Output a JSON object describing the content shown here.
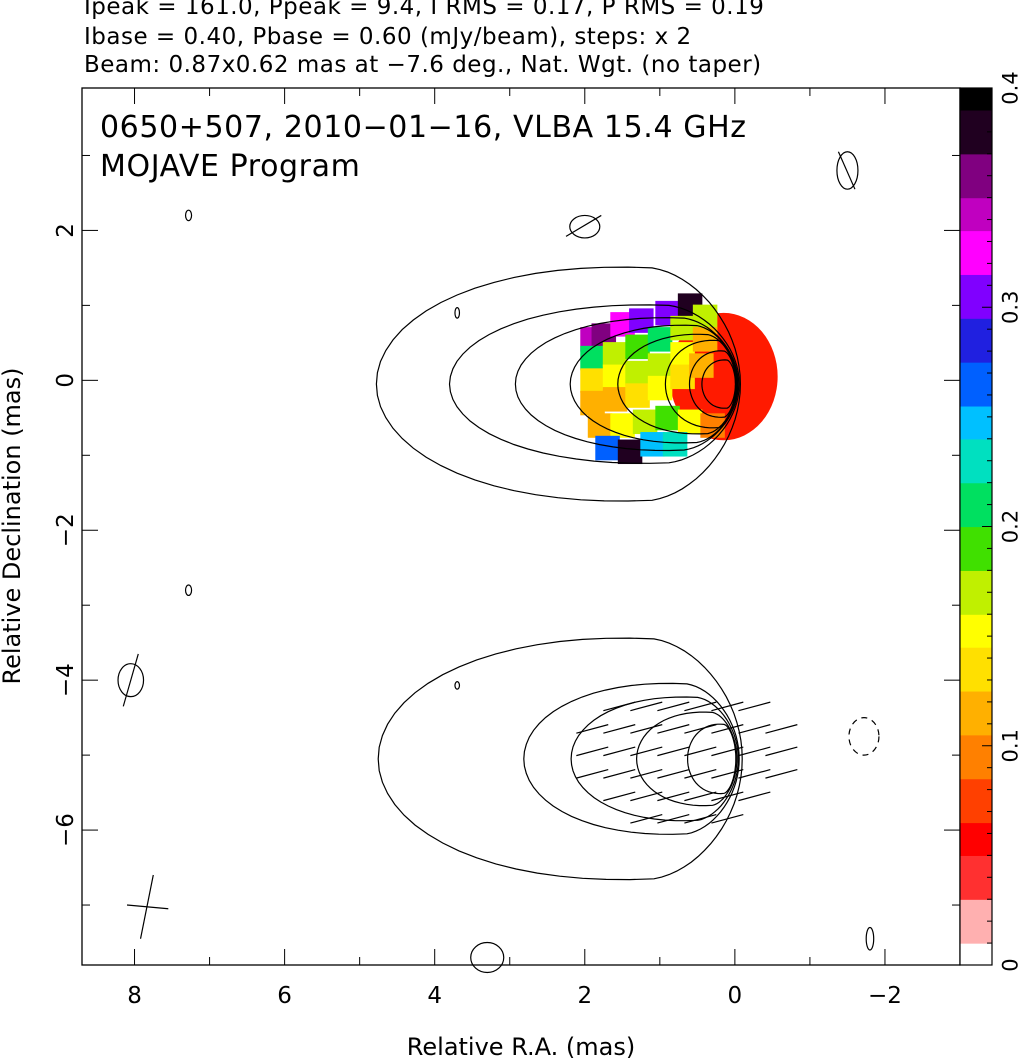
{
  "header": {
    "line1": "Ipeak = 161.0, Ppeak = 9.4, I RMS = 0.17, P RMS = 0.19",
    "line2": "Ibase = 0.40, Pbase = 0.60 (mJy/beam), steps: x 2",
    "line3": "Beam: 0.87x0.62 mas at −7.6 deg., Nat. Wgt. (no taper)"
  },
  "panel": {
    "label1": "0650+507, 2010−01−16, VLBA 15.4 GHz",
    "label2": "MOJAVE Program"
  },
  "chart_data": {
    "type": "heatmap",
    "source": "0650+507",
    "epoch": "2010−01−16",
    "instrument": "VLBA 15.4 GHz",
    "xlabel": "Relative R.A. (mas)",
    "ylabel": "Relative Declination (mas)",
    "xlim": [
      8.7,
      -3.0
    ],
    "ylim": [
      -7.8,
      3.9
    ],
    "x_ticks": [
      8,
      6,
      4,
      2,
      0,
      -2
    ],
    "x_tick_labels": [
      "8",
      "6",
      "4",
      "2",
      "0",
      "−2"
    ],
    "y_ticks": [
      2,
      0,
      -2,
      -4,
      -6
    ],
    "y_tick_labels": [
      "2",
      "0",
      "−2",
      "−4",
      "−6"
    ],
    "colorbar": {
      "min": 0,
      "max": 0.4,
      "ticks": [
        0,
        0.1,
        0.2,
        0.3,
        0.4
      ],
      "tick_labels": [
        "0",
        "0.1",
        "0.2",
        "0.3",
        "0.4"
      ],
      "colors": [
        "#ffffff",
        "#ffb0b0",
        "#ff3030",
        "#ff0000",
        "#ff4000",
        "#ff8000",
        "#ffb000",
        "#ffe000",
        "#ffff00",
        "#c0f000",
        "#40e000",
        "#00e060",
        "#00e0c0",
        "#00c0ff",
        "#0060ff",
        "#2020e0",
        "#8000ff",
        "#ff00ff",
        "#c000c0",
        "#800080",
        "#200020",
        "#000000"
      ]
    },
    "stats": {
      "Ipeak": 161.0,
      "Ppeak": 9.4,
      "I_RMS": 0.17,
      "P_RMS": 0.19,
      "Ibase": 0.4,
      "Pbase": 0.6,
      "units": "mJy/beam",
      "contour_steps": "x 2"
    },
    "beam": {
      "major_mas": 0.87,
      "minor_mas": 0.62,
      "pa_deg": -7.6,
      "weighting": "Nat. Wgt. (no taper)"
    },
    "upper_panel_center": [
      0,
      0
    ],
    "lower_panel_center": [
      0,
      -5
    ],
    "upper_contour_sizes": [
      [
        4.9,
        1.55
      ],
      [
        3.9,
        1.05
      ],
      [
        3.0,
        0.88
      ],
      [
        2.25,
        0.78
      ],
      [
        1.6,
        0.66
      ],
      [
        0.95,
        0.58
      ],
      [
        0.62,
        0.44
      ],
      [
        0.45,
        0.32
      ]
    ],
    "lower_contour_sizes": [
      [
        4.9,
        1.6
      ],
      [
        2.9,
        1.0
      ],
      [
        2.25,
        0.82
      ],
      [
        1.35,
        0.62
      ],
      [
        0.65,
        0.46
      ]
    ],
    "fractional_pol_cells": [
      [
        1.9,
        0.55,
        0.34
      ],
      [
        1.75,
        0.6,
        0.36
      ],
      [
        1.5,
        0.75,
        0.33
      ],
      [
        1.25,
        0.8,
        0.31
      ],
      [
        0.9,
        0.9,
        0.3
      ],
      [
        0.6,
        1.0,
        0.39
      ],
      [
        1.9,
        0.3,
        0.2
      ],
      [
        1.6,
        0.35,
        0.18
      ],
      [
        1.3,
        0.45,
        0.19
      ],
      [
        1.0,
        0.55,
        0.2
      ],
      [
        0.7,
        0.7,
        0.18
      ],
      [
        0.4,
        0.85,
        0.17
      ],
      [
        1.9,
        0.0,
        0.14
      ],
      [
        1.6,
        0.05,
        0.15
      ],
      [
        1.3,
        0.1,
        0.17
      ],
      [
        1.0,
        0.2,
        0.18
      ],
      [
        0.7,
        0.35,
        0.15
      ],
      [
        0.4,
        0.55,
        0.12
      ],
      [
        1.9,
        -0.3,
        0.11
      ],
      [
        1.6,
        -0.25,
        0.12
      ],
      [
        1.3,
        -0.2,
        0.14
      ],
      [
        1.0,
        -0.1,
        0.15
      ],
      [
        0.7,
        0.05,
        0.13
      ],
      [
        0.45,
        0.2,
        0.11
      ],
      [
        1.8,
        -0.6,
        0.12
      ],
      [
        1.5,
        -0.6,
        0.15
      ],
      [
        1.2,
        -0.55,
        0.18
      ],
      [
        0.9,
        -0.5,
        0.19
      ],
      [
        0.6,
        -0.55,
        0.16
      ],
      [
        0.3,
        -0.6,
        0.1
      ],
      [
        1.7,
        -0.9,
        0.26
      ],
      [
        1.4,
        -0.95,
        0.39
      ],
      [
        1.1,
        -0.85,
        0.24
      ],
      [
        0.8,
        -0.85,
        0.22
      ]
    ],
    "pol_vectors_angle_deg": 15
  }
}
